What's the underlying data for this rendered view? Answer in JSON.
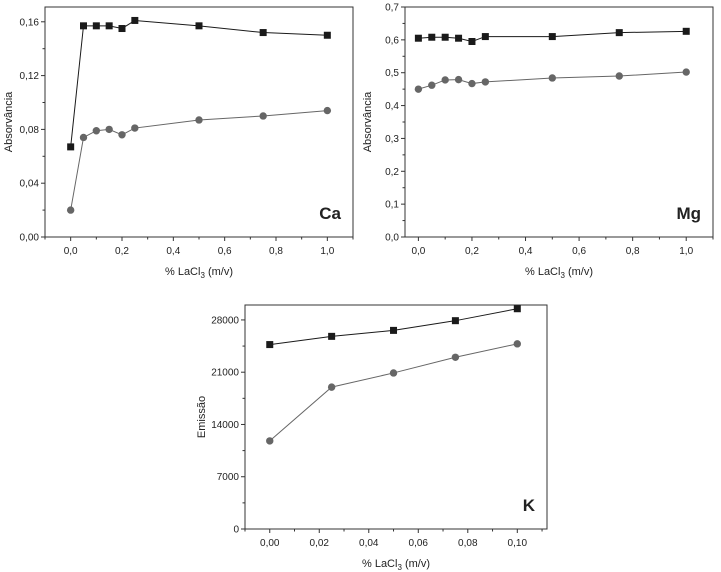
{
  "chart_data": [
    {
      "type": "line",
      "element_label": "Ca",
      "xlabel": "% LaCl3 (m/v)",
      "xlabel_main": "% LaCl",
      "xlabel_sub": "3",
      "xlabel_tail": " (m/v)",
      "ylabel": "Absorvância",
      "xlim": [
        -0.1,
        1.1
      ],
      "ylim": [
        0,
        0.171
      ],
      "xticks": [
        0,
        0.2,
        0.4,
        0.6,
        0.8,
        1.0
      ],
      "xtick_labels": [
        "0,0",
        "0,2",
        "0,4",
        "0,6",
        "0,8",
        "1,0"
      ],
      "yticks": [
        0,
        0.04,
        0.08,
        0.12,
        0.16
      ],
      "ytick_labels": [
        "0,00",
        "0,04",
        "0,08",
        "0,12",
        "0,16"
      ],
      "x": [
        0,
        0.05,
        0.1,
        0.15,
        0.2,
        0.25,
        0.5,
        0.75,
        1.0
      ],
      "series": [
        {
          "name": "square",
          "marker": "square",
          "color": "#1a1a1a",
          "values": [
            0.067,
            0.157,
            0.157,
            0.157,
            0.155,
            0.161,
            0.157,
            0.152,
            0.15
          ]
        },
        {
          "name": "circle",
          "marker": "circle",
          "color": "#666666",
          "values": [
            0.02,
            0.074,
            0.079,
            0.08,
            0.076,
            0.081,
            0.087,
            0.09,
            0.094
          ]
        }
      ],
      "grid": false
    },
    {
      "type": "line",
      "element_label": "Mg",
      "xlabel": "% LaCl3 (m/v)",
      "xlabel_main": "% LaCl",
      "xlabel_sub": "3",
      "xlabel_tail": " (m/v)",
      "ylabel": "Absorvância",
      "xlim": [
        -0.05,
        1.1
      ],
      "ylim": [
        0,
        0.7
      ],
      "xticks": [
        0,
        0.2,
        0.4,
        0.6,
        0.8,
        1.0
      ],
      "xtick_labels": [
        "0,0",
        "0,2",
        "0,4",
        "0,6",
        "0,8",
        "1,0"
      ],
      "yticks": [
        0,
        0.1,
        0.2,
        0.3,
        0.4,
        0.5,
        0.6,
        0.7
      ],
      "ytick_labels": [
        "0,0",
        "0,1",
        "0,2",
        "0,3",
        "0,4",
        "0,5",
        "0,6",
        "0,7"
      ],
      "x": [
        0,
        0.05,
        0.1,
        0.15,
        0.2,
        0.25,
        0.5,
        0.75,
        1.0
      ],
      "series": [
        {
          "name": "square",
          "marker": "square",
          "color": "#1a1a1a",
          "values": [
            0.605,
            0.608,
            0.608,
            0.605,
            0.595,
            0.61,
            0.61,
            0.622,
            0.626
          ]
        },
        {
          "name": "circle",
          "marker": "circle",
          "color": "#666666",
          "values": [
            0.45,
            0.462,
            0.478,
            0.479,
            0.467,
            0.472,
            0.484,
            0.49,
            0.502
          ]
        }
      ],
      "grid": false
    },
    {
      "type": "line",
      "element_label": "K",
      "xlabel": "% LaCl3 (m/v)",
      "xlabel_main": "% LaCl",
      "xlabel_sub": "3",
      "xlabel_tail": " (m/v)",
      "ylabel": "Emissão",
      "xlim": [
        -0.01,
        0.112
      ],
      "ylim": [
        0,
        30000
      ],
      "xticks": [
        0,
        0.02,
        0.04,
        0.06,
        0.08,
        0.1
      ],
      "xtick_labels": [
        "0,00",
        "0,02",
        "0,04",
        "0,06",
        "0,08",
        "0,10"
      ],
      "yticks": [
        0,
        7000,
        14000,
        21000,
        28000
      ],
      "ytick_labels": [
        "0",
        "7000",
        "14000",
        "21000",
        "28000"
      ],
      "x": [
        0,
        0.025,
        0.05,
        0.075,
        0.1
      ],
      "series": [
        {
          "name": "square",
          "marker": "square",
          "color": "#1a1a1a",
          "values": [
            24700,
            25800,
            26600,
            27900,
            29500
          ]
        },
        {
          "name": "circle",
          "marker": "circle",
          "color": "#666666",
          "values": [
            11800,
            19000,
            20900,
            23000,
            24800
          ]
        }
      ],
      "grid": false
    }
  ]
}
